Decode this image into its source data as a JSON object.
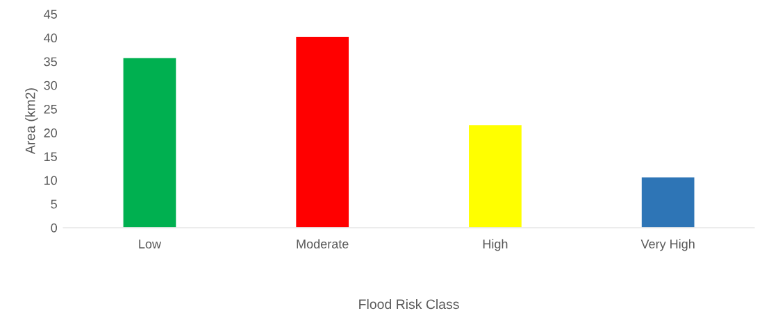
{
  "chart_data": {
    "type": "bar",
    "xlabel": "Flood Risk Class",
    "ylabel": "Area (km2)",
    "categories": [
      "Low",
      "Moderate",
      "High",
      "Very High"
    ],
    "values": [
      35.8,
      40.3,
      21.7,
      10.7
    ],
    "colors": [
      "#00b050",
      "#ff0000",
      "#ffff00",
      "#2e75b6"
    ],
    "ylim": [
      0,
      45
    ],
    "yticks": [
      0,
      5,
      10,
      15,
      20,
      25,
      30,
      35,
      40,
      45
    ],
    "grid": false
  }
}
